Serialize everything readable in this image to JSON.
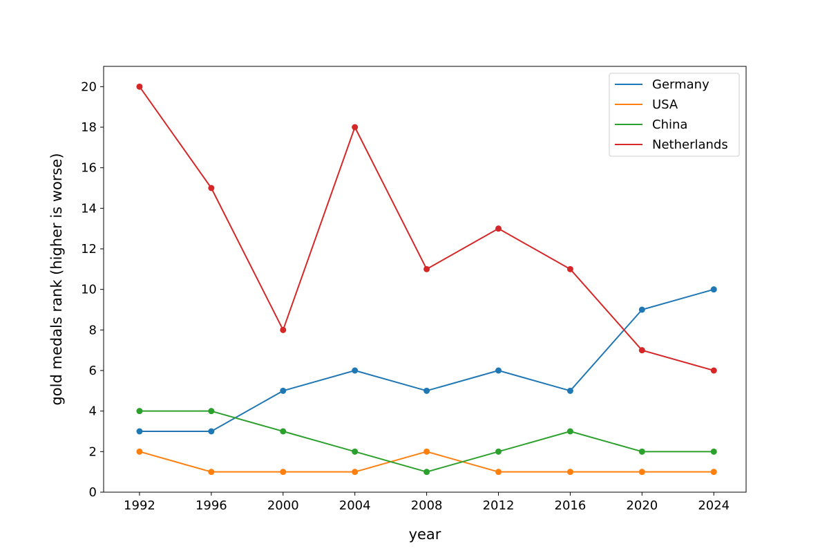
{
  "chart_data": {
    "type": "line",
    "title": "",
    "xlabel": "year",
    "ylabel": "gold medals rank (higher is worse)",
    "x": [
      1992,
      1996,
      2000,
      2004,
      2008,
      2012,
      2016,
      2020,
      2024
    ],
    "xticks": [
      "1992",
      "1996",
      "2000",
      "2004",
      "2008",
      "2012",
      "2016",
      "2020",
      "2024"
    ],
    "yticks": [
      "0",
      "2",
      "4",
      "6",
      "8",
      "10",
      "12",
      "14",
      "16",
      "18",
      "20"
    ],
    "ylim": [
      0,
      21
    ],
    "legend_position": "top-right",
    "series": [
      {
        "name": "Germany",
        "color": "#1f77b4",
        "values": [
          3,
          3,
          5,
          6,
          5,
          6,
          5,
          9,
          10
        ]
      },
      {
        "name": "USA",
        "color": "#ff7f0e",
        "values": [
          2,
          1,
          1,
          1,
          2,
          1,
          1,
          1,
          1
        ]
      },
      {
        "name": "China",
        "color": "#2ca02c",
        "values": [
          4,
          4,
          3,
          2,
          1,
          2,
          3,
          2,
          2
        ]
      },
      {
        "name": "Netherlands",
        "color": "#d62728",
        "values": [
          20,
          15,
          8,
          18,
          11,
          13,
          11,
          7,
          6
        ]
      }
    ]
  }
}
